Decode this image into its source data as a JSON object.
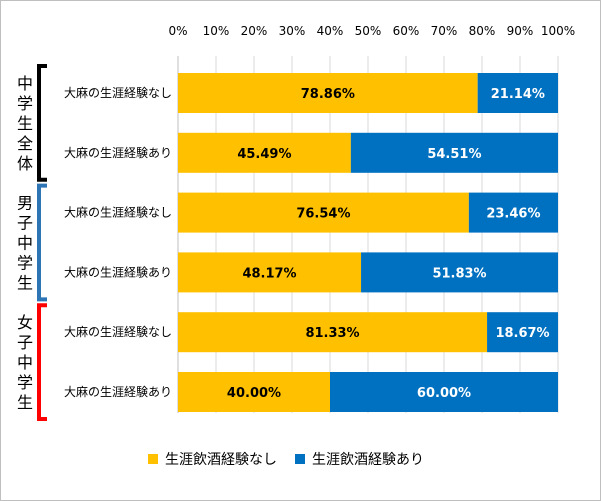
{
  "chart_data": {
    "type": "bar",
    "orientation": "horizontal",
    "stacked": "percent",
    "x_ticks": [
      "0%",
      "10%",
      "20%",
      "30%",
      "40%",
      "50%",
      "60%",
      "70%",
      "80%",
      "90%",
      "100%"
    ],
    "xlim": [
      0,
      100
    ],
    "grid": true,
    "legend_position": "bottom",
    "groups": [
      {
        "label": "中学生全体",
        "bracket_color": "#000000",
        "categories": [
          "大麻の生涯経験なし",
          "大麻の生涯経験あり"
        ]
      },
      {
        "label": "男子中学生",
        "bracket_color": "#2e75b6",
        "categories": [
          "大麻の生涯経験なし",
          "大麻の生涯経験あり"
        ]
      },
      {
        "label": "女子中学生",
        "bracket_color": "#ff0000",
        "categories": [
          "大麻の生涯経験なし",
          "大麻の生涯経験あり"
        ]
      }
    ],
    "series": [
      {
        "name": "生涯飲酒経験なし",
        "color": "#ffc000",
        "label_color": "#000000",
        "values": [
          78.86,
          45.49,
          76.54,
          48.17,
          81.33,
          40.0
        ],
        "labels": [
          "78.86%",
          "45.49%",
          "76.54%",
          "48.17%",
          "81.33%",
          "40.00%"
        ]
      },
      {
        "name": "生涯飲酒経験あり",
        "color": "#0070c0",
        "label_color": "#ffffff",
        "values": [
          21.14,
          54.51,
          23.46,
          51.83,
          18.67,
          60.0
        ],
        "labels": [
          "21.14%",
          "54.51%",
          "23.46%",
          "51.83%",
          "18.67%",
          "60.00%"
        ]
      }
    ]
  }
}
